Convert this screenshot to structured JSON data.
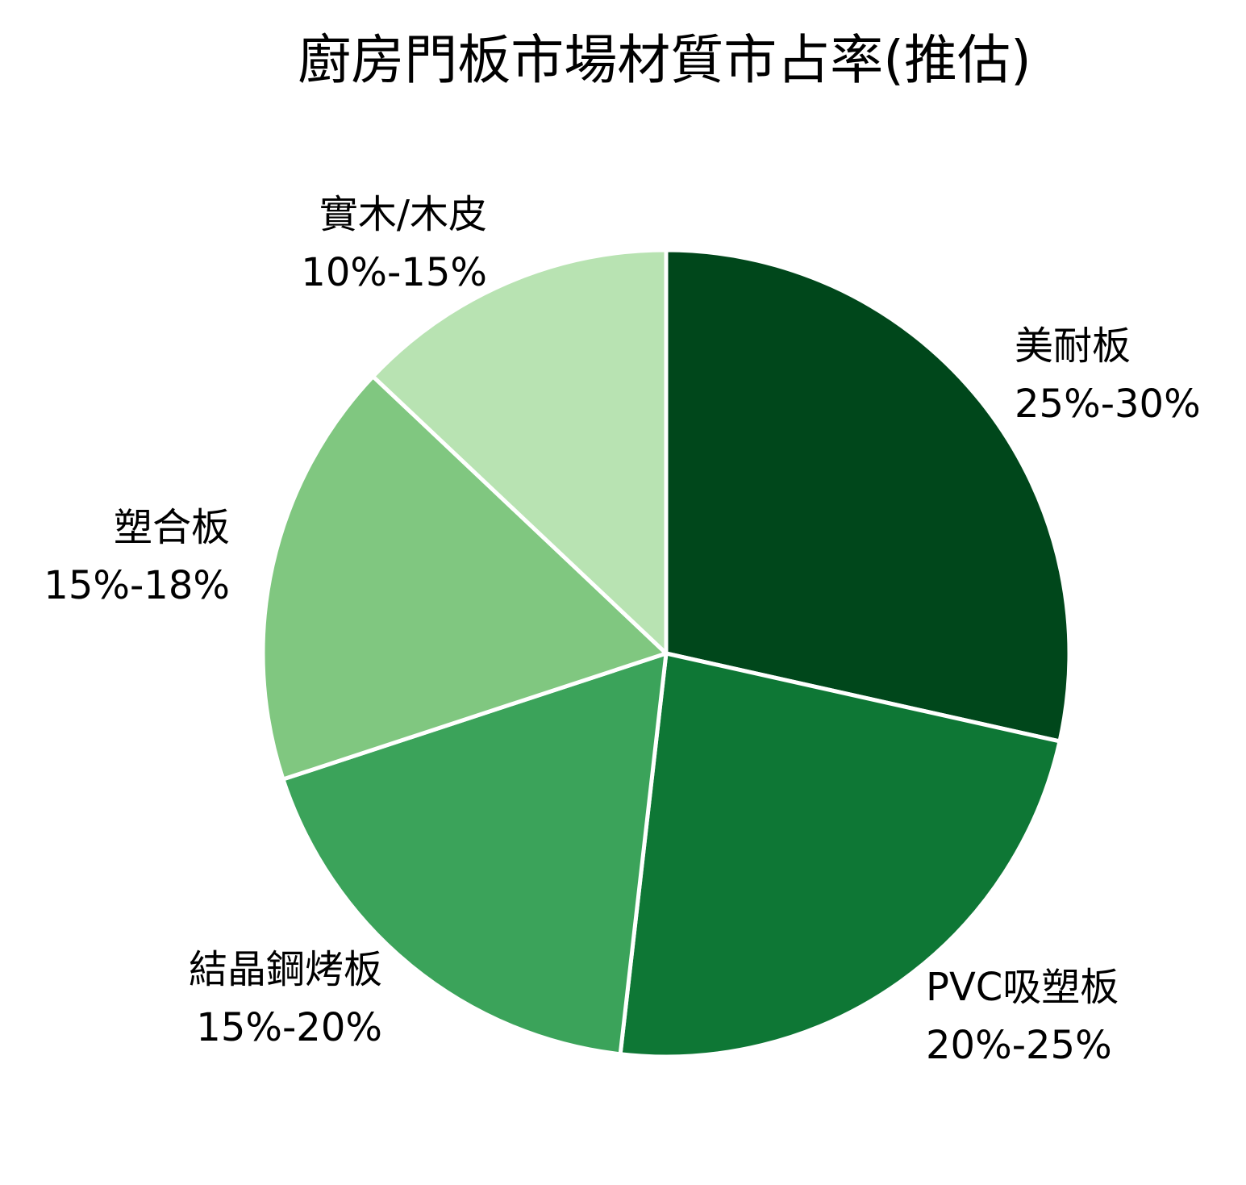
{
  "chart_data": {
    "type": "pie",
    "title": "廚房門板市場材質市占率(推估)",
    "start": "12 o'clock",
    "direction": "clockwise",
    "slices": [
      {
        "name": "美耐板",
        "range_label": "25%-30%",
        "value": 27.5,
        "color": "#00471b"
      },
      {
        "name": "PVC吸塑板",
        "range_label": "20%-25%",
        "value": 22.5,
        "color": "#0e7735"
      },
      {
        "name": "結晶鋼烤板",
        "range_label": "15%-20%",
        "value": 17.5,
        "color": "#3ba35a"
      },
      {
        "name": "塑合板",
        "range_label": "15%-18%",
        "value": 16.5,
        "color": "#80c780"
      },
      {
        "name": "實木/木皮",
        "range_label": "10%-15%",
        "value": 12.5,
        "color": "#b8e3b2"
      }
    ]
  }
}
